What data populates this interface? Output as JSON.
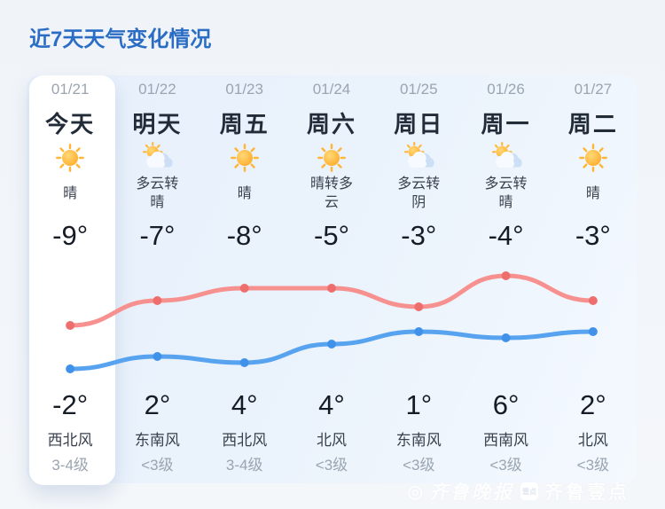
{
  "page": {
    "title": "近7天天气变化情况"
  },
  "days": [
    {
      "date": "01/21",
      "label": "今天",
      "icon": "sunny",
      "condition": "晴",
      "temp_night": "-9°",
      "temp_day": "-2°",
      "wind_direction": "西北风",
      "wind_level": "3-4级",
      "selected": true
    },
    {
      "date": "01/22",
      "label": "明天",
      "icon": "partly-cloudy",
      "condition": "多云转\n晴",
      "temp_night": "-7°",
      "temp_day": "2°",
      "wind_direction": "东南风",
      "wind_level": "<3级",
      "selected": false
    },
    {
      "date": "01/23",
      "label": "周五",
      "icon": "sunny",
      "condition": "晴",
      "temp_night": "-8°",
      "temp_day": "4°",
      "wind_direction": "西北风",
      "wind_level": "3-4级",
      "selected": false
    },
    {
      "date": "01/24",
      "label": "周六",
      "icon": "sunny",
      "condition": "晴转多\n云",
      "temp_night": "-5°",
      "temp_day": "4°",
      "wind_direction": "北风",
      "wind_level": "<3级",
      "selected": false
    },
    {
      "date": "01/25",
      "label": "周日",
      "icon": "partly-cloudy",
      "condition": "多云转\n阴",
      "temp_night": "-3°",
      "temp_day": "1°",
      "wind_direction": "东南风",
      "wind_level": "<3级",
      "selected": false
    },
    {
      "date": "01/26",
      "label": "周一",
      "icon": "partly-cloudy",
      "condition": "多云转\n晴",
      "temp_night": "-4°",
      "temp_day": "6°",
      "wind_direction": "西南风",
      "wind_level": "<3级",
      "selected": false
    },
    {
      "date": "01/27",
      "label": "周二",
      "icon": "sunny",
      "condition": "晴",
      "temp_night": "-3°",
      "temp_day": "2°",
      "wind_direction": "北风",
      "wind_level": "<3级",
      "selected": false
    }
  ],
  "chart_data": {
    "type": "line",
    "categories": [
      "01/21",
      "01/22",
      "01/23",
      "01/24",
      "01/25",
      "01/26",
      "01/27"
    ],
    "series": [
      {
        "name": "day-high-temp",
        "values": [
          -2,
          2,
          4,
          4,
          1,
          6,
          2
        ],
        "line_color": "#f6918f",
        "dot_color": "#ee6e6d"
      },
      {
        "name": "night-low-temp",
        "values": [
          -9,
          -7,
          -8,
          -5,
          -3,
          -4,
          -3
        ],
        "line_color": "#58a3f0",
        "dot_color": "#3f91ea"
      }
    ],
    "unit": "°C",
    "grid": false,
    "legend": "none",
    "smooth": true
  },
  "watermark": {
    "logo": "◎",
    "paper": "齐鲁晚报",
    "badge": "壹点",
    "app": "齐鲁壹点"
  },
  "colors": {
    "title": "#2b6dc5",
    "panel": "#e9f1fb",
    "selected_card": "#ffffff",
    "high_line": "#f6918f",
    "low_line": "#58a3f0",
    "sun": "#ffb637"
  }
}
